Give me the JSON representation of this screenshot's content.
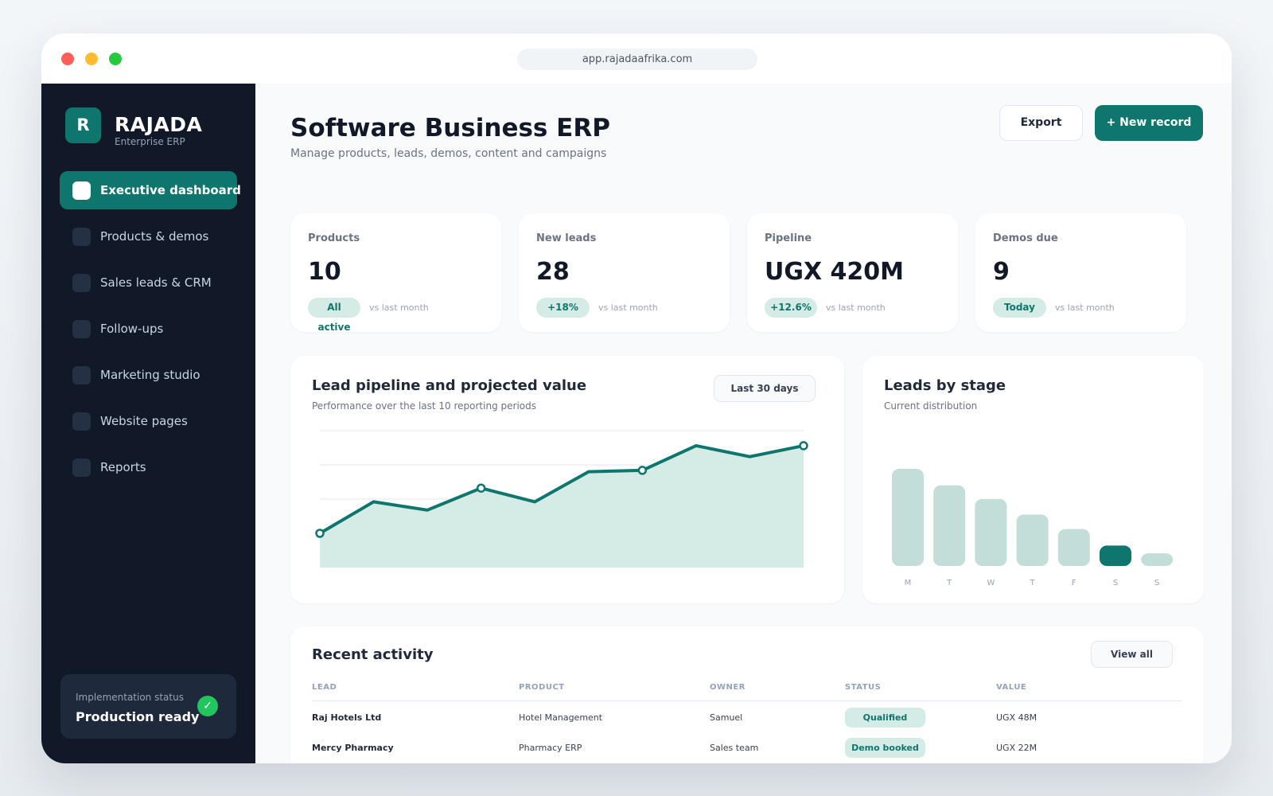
{
  "browser": {
    "url": "app.rajadaafrika.com"
  },
  "sidebar": {
    "logo_letter": "R",
    "brand": "RAJADA",
    "brand_sub": "Enterprise ERP",
    "items": [
      {
        "label": "Executive dashboard",
        "active": true
      },
      {
        "label": "Products & demos",
        "active": false
      },
      {
        "label": "Sales leads & CRM",
        "active": false
      },
      {
        "label": "Follow-ups",
        "active": false
      },
      {
        "label": "Marketing studio",
        "active": false
      },
      {
        "label": "Website pages",
        "active": false
      },
      {
        "label": "Reports",
        "active": false
      }
    ],
    "status": {
      "caption": "Implementation status",
      "value": "Production ready",
      "icon": "check-icon"
    }
  },
  "header": {
    "title": "Software Business ERP",
    "subtitle": "Manage products, leads, demos, content and campaigns",
    "export_label": "Export",
    "new_label": "+ New record"
  },
  "kpis": [
    {
      "label": "Products",
      "value": "10",
      "badge": "All active",
      "compare": "vs last month"
    },
    {
      "label": "New leads",
      "value": "28",
      "badge": "+18%",
      "compare": "vs last month"
    },
    {
      "label": "Pipeline",
      "value": "UGX 420M",
      "badge": "+12.6%",
      "compare": "vs last month"
    },
    {
      "label": "Demos due",
      "value": "9",
      "badge": "Today",
      "compare": "vs last month"
    }
  ],
  "pipeline": {
    "title": "Lead pipeline and projected value",
    "subtitle": "Performance over the last 10 reporting periods",
    "range_label": "Last 30 days"
  },
  "stages": {
    "title": "Leads by stage",
    "subtitle": "Current distribution"
  },
  "activity": {
    "title": "Recent activity",
    "view_all_label": "View all",
    "columns": [
      "LEAD",
      "PRODUCT",
      "OWNER",
      "STATUS",
      "VALUE"
    ],
    "rows": [
      {
        "lead": "Raj Hotels Ltd",
        "product": "Hotel Management",
        "owner": "Samuel",
        "status": "Qualified",
        "value": "UGX 48M"
      },
      {
        "lead": "Mercy Pharmacy",
        "product": "Pharmacy ERP",
        "owner": "Sales team",
        "status": "Demo booked",
        "value": "UGX 22M"
      }
    ]
  },
  "colors": {
    "accent": "#0f766e",
    "accent_light": "#d5ebe6",
    "bar_light": "#c3ddd9",
    "sidebar_bg": "#111827",
    "success": "#22c55e"
  },
  "chart_data": [
    {
      "type": "area",
      "x": [
        1,
        2,
        3,
        4,
        5,
        6,
        7,
        8,
        9,
        10
      ],
      "values": [
        25,
        48,
        42,
        58,
        48,
        70,
        71,
        89,
        81,
        89
      ],
      "ylim": [
        0,
        100
      ],
      "grid": true,
      "markers_at": [
        1,
        4,
        7,
        10
      ]
    },
    {
      "type": "bar",
      "categories": [
        "M",
        "T",
        "W",
        "T",
        "F",
        "S",
        "S"
      ],
      "values": [
        100,
        83,
        69,
        53,
        38,
        21,
        13
      ],
      "highlight_index": 5
    }
  ]
}
